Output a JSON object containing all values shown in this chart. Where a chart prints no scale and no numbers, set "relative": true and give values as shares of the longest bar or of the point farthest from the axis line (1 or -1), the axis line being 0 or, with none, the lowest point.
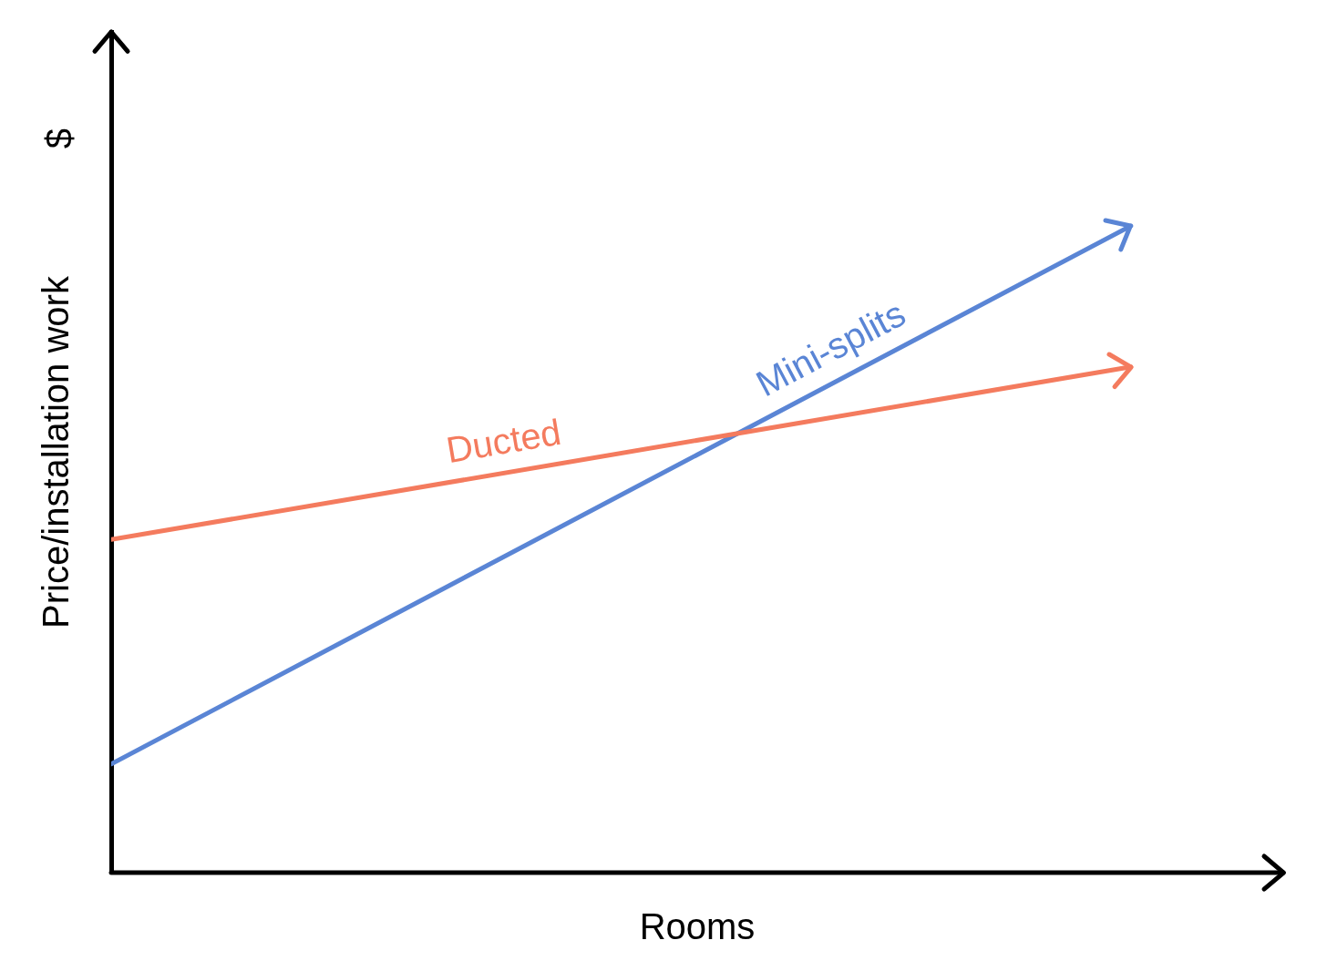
{
  "chart_data": {
    "type": "line",
    "relative": true,
    "xlabel": "Rooms",
    "ylabel": "Price/installation work",
    "annotations": [
      "$"
    ],
    "categories": [
      null,
      null
    ],
    "series": [
      {
        "name": "Ducted",
        "color": "#f47b5e",
        "values": [
          0.515,
          0.782
        ]
      },
      {
        "name": "Mini-splits",
        "color": "#5a85d5",
        "values": [
          0.168,
          1
        ]
      }
    ],
    "ref_lines": [
      {
        "axis": "y",
        "value": 0,
        "color": "#000000"
      }
    ],
    "grid": false,
    "legend": false,
    "marker": "none",
    "line_style": "solid"
  }
}
